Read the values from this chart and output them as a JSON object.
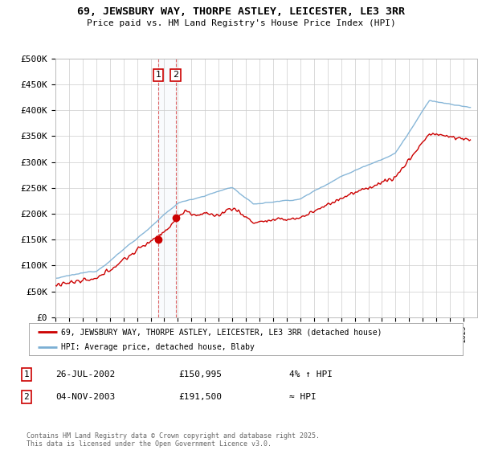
{
  "title": "69, JEWSBURY WAY, THORPE ASTLEY, LEICESTER, LE3 3RR",
  "subtitle": "Price paid vs. HM Land Registry's House Price Index (HPI)",
  "ylim": [
    0,
    500000
  ],
  "yticks": [
    0,
    50000,
    100000,
    150000,
    200000,
    250000,
    300000,
    350000,
    400000,
    450000,
    500000
  ],
  "ytick_labels": [
    "£0",
    "£50K",
    "£100K",
    "£150K",
    "£200K",
    "£250K",
    "£300K",
    "£350K",
    "£400K",
    "£450K",
    "£500K"
  ],
  "bg_color": "#ffffff",
  "plot_bg_color": "#ffffff",
  "grid_color": "#cccccc",
  "line1_color": "#cc0000",
  "line2_color": "#7bafd4",
  "sale1_date": 2002.57,
  "sale1_price": 150995,
  "sale1_label": "1",
  "sale2_date": 2003.84,
  "sale2_price": 191500,
  "sale2_label": "2",
  "legend_line1": "69, JEWSBURY WAY, THORPE ASTLEY, LEICESTER, LE3 3RR (detached house)",
  "legend_line2": "HPI: Average price, detached house, Blaby",
  "table_row1": [
    "1",
    "26-JUL-2002",
    "£150,995",
    "4% ↑ HPI"
  ],
  "table_row2": [
    "2",
    "04-NOV-2003",
    "£191,500",
    "≈ HPI"
  ],
  "footer": "Contains HM Land Registry data © Crown copyright and database right 2025.\nThis data is licensed under the Open Government Licence v3.0.",
  "xmin": 1995,
  "xmax": 2026
}
